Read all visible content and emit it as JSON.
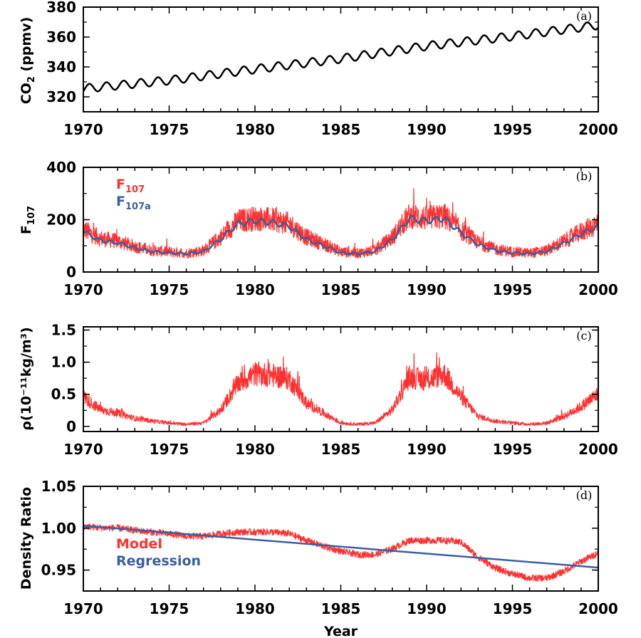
{
  "colors": {
    "red": "#ff3030",
    "blue": "#3a5f9e",
    "black": "#000000"
  },
  "chart_data": [
    {
      "type": "line",
      "panel": "(a)",
      "ylabel": "CO₂ (ppmv)",
      "ylabel_main": "CO",
      "ylabel_sub": "2",
      "ylabel_rest": " (ppmv)",
      "xlim": [
        1970,
        2000
      ],
      "ylim": [
        310,
        380
      ],
      "xticks": [
        "1970",
        "1975",
        "1980",
        "1985",
        "1990",
        "1995",
        "2000"
      ],
      "yticks": [
        "320",
        "340",
        "360",
        "380"
      ],
      "series": [
        {
          "color": "#000000",
          "seasonal_amplitude": 2.8,
          "annual_means": [
            {
              "year": 1970,
              "value": 325.5
            },
            {
              "year": 1975,
              "value": 331.0
            },
            {
              "year": 1980,
              "value": 338.5
            },
            {
              "year": 1985,
              "value": 345.5
            },
            {
              "year": 1990,
              "value": 354.0
            },
            {
              "year": 1995,
              "value": 360.5
            },
            {
              "year": 2000,
              "value": 368.0
            }
          ]
        }
      ]
    },
    {
      "type": "line",
      "panel": "(b)",
      "ylabel": "F₁₀₇",
      "ylabel_main": "F",
      "ylabel_sub": "107",
      "xlim": [
        1970,
        2000
      ],
      "ylim": [
        0,
        400
      ],
      "xticks": [
        "1970",
        "1975",
        "1980",
        "1985",
        "1990",
        "1995",
        "2000"
      ],
      "yticks": [
        "0",
        "200",
        "400"
      ],
      "legend_position": "top-left",
      "series": [
        {
          "name": "F₁₀₇",
          "name_main": "F",
          "name_sub": "107",
          "color": "#ff3030",
          "noisy": true,
          "points": [
            {
              "year": 1970.0,
              "value": 160
            },
            {
              "year": 1971.0,
              "value": 125
            },
            {
              "year": 1972.0,
              "value": 115
            },
            {
              "year": 1973.0,
              "value": 95
            },
            {
              "year": 1974.0,
              "value": 80
            },
            {
              "year": 1975.0,
              "value": 75
            },
            {
              "year": 1976.0,
              "value": 70
            },
            {
              "year": 1977.0,
              "value": 80
            },
            {
              "year": 1978.0,
              "value": 130
            },
            {
              "year": 1979.0,
              "value": 190
            },
            {
              "year": 1980.0,
              "value": 200
            },
            {
              "year": 1981.0,
              "value": 195
            },
            {
              "year": 1982.0,
              "value": 180
            },
            {
              "year": 1983.0,
              "value": 130
            },
            {
              "year": 1984.0,
              "value": 105
            },
            {
              "year": 1985.0,
              "value": 75
            },
            {
              "year": 1986.0,
              "value": 70
            },
            {
              "year": 1987.0,
              "value": 80
            },
            {
              "year": 1988.0,
              "value": 130
            },
            {
              "year": 1989.0,
              "value": 210
            },
            {
              "year": 1990.0,
              "value": 200
            },
            {
              "year": 1991.0,
              "value": 210
            },
            {
              "year": 1992.0,
              "value": 155
            },
            {
              "year": 1993.0,
              "value": 110
            },
            {
              "year": 1994.0,
              "value": 85
            },
            {
              "year": 1995.0,
              "value": 75
            },
            {
              "year": 1996.0,
              "value": 70
            },
            {
              "year": 1997.0,
              "value": 80
            },
            {
              "year": 1998.0,
              "value": 115
            },
            {
              "year": 1999.0,
              "value": 150
            },
            {
              "year": 2000.0,
              "value": 180
            }
          ]
        },
        {
          "name": "F₁₀₇ₐ",
          "name_main": "F",
          "name_sub": "107a",
          "color": "#3a5f9e",
          "noisy": false,
          "points": [
            {
              "year": 1970.0,
              "value": 155
            },
            {
              "year": 1971.0,
              "value": 120
            },
            {
              "year": 1972.0,
              "value": 112
            },
            {
              "year": 1973.0,
              "value": 92
            },
            {
              "year": 1974.0,
              "value": 78
            },
            {
              "year": 1975.0,
              "value": 73
            },
            {
              "year": 1976.0,
              "value": 70
            },
            {
              "year": 1977.0,
              "value": 78
            },
            {
              "year": 1978.0,
              "value": 125
            },
            {
              "year": 1979.0,
              "value": 185
            },
            {
              "year": 1980.0,
              "value": 195
            },
            {
              "year": 1981.0,
              "value": 190
            },
            {
              "year": 1982.0,
              "value": 175
            },
            {
              "year": 1983.0,
              "value": 125
            },
            {
              "year": 1984.0,
              "value": 100
            },
            {
              "year": 1985.0,
              "value": 73
            },
            {
              "year": 1986.0,
              "value": 70
            },
            {
              "year": 1987.0,
              "value": 78
            },
            {
              "year": 1988.0,
              "value": 125
            },
            {
              "year": 1989.0,
              "value": 205
            },
            {
              "year": 1990.0,
              "value": 195
            },
            {
              "year": 1991.0,
              "value": 205
            },
            {
              "year": 1992.0,
              "value": 150
            },
            {
              "year": 1993.0,
              "value": 105
            },
            {
              "year": 1994.0,
              "value": 82
            },
            {
              "year": 1995.0,
              "value": 73
            },
            {
              "year": 1996.0,
              "value": 70
            },
            {
              "year": 1997.0,
              "value": 78
            },
            {
              "year": 1998.0,
              "value": 110
            },
            {
              "year": 1999.0,
              "value": 145
            },
            {
              "year": 2000.0,
              "value": 175
            }
          ]
        }
      ]
    },
    {
      "type": "line",
      "panel": "(c)",
      "ylabel": "ρ(10⁻¹¹kg/m³)",
      "xlim": [
        1970,
        2000
      ],
      "ylim": [
        -0.08,
        1.55
      ],
      "xticks": [
        "1970",
        "1975",
        "1980",
        "1985",
        "1990",
        "1995",
        "2000"
      ],
      "yticks": [
        "0",
        "0.5",
        "1.0",
        "1.5"
      ],
      "series": [
        {
          "color": "#ff3030",
          "noisy": true,
          "points": [
            {
              "year": 1970.0,
              "value": 0.45
            },
            {
              "year": 1971.0,
              "value": 0.25
            },
            {
              "year": 1972.0,
              "value": 0.2
            },
            {
              "year": 1973.0,
              "value": 0.12
            },
            {
              "year": 1974.0,
              "value": 0.08
            },
            {
              "year": 1975.0,
              "value": 0.05
            },
            {
              "year": 1976.0,
              "value": 0.03
            },
            {
              "year": 1977.0,
              "value": 0.05
            },
            {
              "year": 1978.0,
              "value": 0.25
            },
            {
              "year": 1979.0,
              "value": 0.65
            },
            {
              "year": 1980.0,
              "value": 0.8
            },
            {
              "year": 1981.0,
              "value": 0.78
            },
            {
              "year": 1982.0,
              "value": 0.72
            },
            {
              "year": 1983.0,
              "value": 0.35
            },
            {
              "year": 1984.0,
              "value": 0.2
            },
            {
              "year": 1985.0,
              "value": 0.05
            },
            {
              "year": 1986.0,
              "value": 0.03
            },
            {
              "year": 1987.0,
              "value": 0.05
            },
            {
              "year": 1988.0,
              "value": 0.25
            },
            {
              "year": 1989.0,
              "value": 0.75
            },
            {
              "year": 1990.0,
              "value": 0.7
            },
            {
              "year": 1991.0,
              "value": 0.8
            },
            {
              "year": 1992.0,
              "value": 0.45
            },
            {
              "year": 1993.0,
              "value": 0.15
            },
            {
              "year": 1994.0,
              "value": 0.08
            },
            {
              "year": 1995.0,
              "value": 0.05
            },
            {
              "year": 1996.0,
              "value": 0.03
            },
            {
              "year": 1997.0,
              "value": 0.05
            },
            {
              "year": 1998.0,
              "value": 0.15
            },
            {
              "year": 1999.0,
              "value": 0.3
            },
            {
              "year": 2000.0,
              "value": 0.5
            }
          ]
        }
      ]
    },
    {
      "type": "line",
      "panel": "(d)",
      "ylabel": "Density Ratio",
      "xlabel": "Year",
      "xlim": [
        1970,
        2000
      ],
      "ylim": [
        0.925,
        1.05
      ],
      "xticks": [
        "1970",
        "1975",
        "1980",
        "1985",
        "1990",
        "1995",
        "2000"
      ],
      "yticks": [
        "0.95",
        "1.00",
        "1.05"
      ],
      "legend_position": "bottom-left",
      "series": [
        {
          "name": "Model",
          "color": "#ff3030",
          "noisy": true,
          "points": [
            {
              "year": 1970.0,
              "value": 1.002
            },
            {
              "year": 1971.0,
              "value": 1.0
            },
            {
              "year": 1972.0,
              "value": 1.0
            },
            {
              "year": 1973.0,
              "value": 0.997
            },
            {
              "year": 1974.0,
              "value": 0.995
            },
            {
              "year": 1975.0,
              "value": 0.993
            },
            {
              "year": 1976.0,
              "value": 0.99
            },
            {
              "year": 1977.0,
              "value": 0.99
            },
            {
              "year": 1978.0,
              "value": 0.993
            },
            {
              "year": 1979.0,
              "value": 0.995
            },
            {
              "year": 1980.0,
              "value": 0.995
            },
            {
              "year": 1981.0,
              "value": 0.995
            },
            {
              "year": 1982.0,
              "value": 0.993
            },
            {
              "year": 1983.0,
              "value": 0.985
            },
            {
              "year": 1984.0,
              "value": 0.978
            },
            {
              "year": 1985.0,
              "value": 0.972
            },
            {
              "year": 1986.0,
              "value": 0.968
            },
            {
              "year": 1987.0,
              "value": 0.968
            },
            {
              "year": 1988.0,
              "value": 0.975
            },
            {
              "year": 1989.0,
              "value": 0.985
            },
            {
              "year": 1990.0,
              "value": 0.985
            },
            {
              "year": 1991.0,
              "value": 0.985
            },
            {
              "year": 1992.0,
              "value": 0.983
            },
            {
              "year": 1993.0,
              "value": 0.965
            },
            {
              "year": 1994.0,
              "value": 0.952
            },
            {
              "year": 1995.0,
              "value": 0.945
            },
            {
              "year": 1996.0,
              "value": 0.94
            },
            {
              "year": 1997.0,
              "value": 0.94
            },
            {
              "year": 1998.0,
              "value": 0.948
            },
            {
              "year": 1999.0,
              "value": 0.96
            },
            {
              "year": 2000.0,
              "value": 0.97
            }
          ]
        },
        {
          "name": "Regression",
          "color": "#3a5f9e",
          "noisy": false,
          "points": [
            {
              "year": 1970.0,
              "value": 1.003
            },
            {
              "year": 2000.0,
              "value": 0.953
            }
          ]
        }
      ]
    }
  ]
}
